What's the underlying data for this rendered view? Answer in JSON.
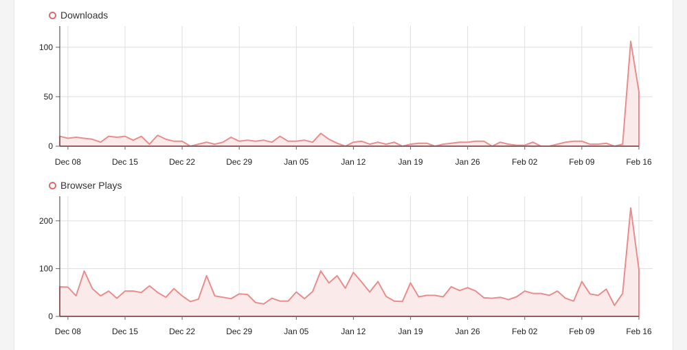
{
  "chart_data": [
    {
      "type": "area",
      "series_name": "Downloads",
      "x_ticks": [
        "Dec 08",
        "Dec 15",
        "Dec 22",
        "Dec 29",
        "Jan 05",
        "Jan 12",
        "Jan 19",
        "Jan 26",
        "Feb 02",
        "Feb 09",
        "Feb 16"
      ],
      "y_ticks": [
        "0",
        "50",
        "100"
      ],
      "ylim": [
        0,
        120
      ],
      "grid": true,
      "color": "#e88c8c",
      "fill": "#fbeaea",
      "x_start_day": 0,
      "values": [
        10,
        8,
        9,
        8,
        7,
        4,
        10,
        9,
        10,
        6,
        10,
        2,
        11,
        7,
        5,
        5,
        0,
        2,
        4,
        2,
        4,
        9,
        5,
        6,
        5,
        6,
        4,
        10,
        5,
        5,
        6,
        4,
        13,
        7,
        3,
        0,
        4,
        5,
        2,
        4,
        2,
        4,
        0,
        2,
        3,
        3,
        0,
        2,
        3,
        4,
        4,
        5,
        5,
        0,
        4,
        2,
        1,
        1,
        4,
        0,
        0,
        2,
        4,
        5,
        5,
        2,
        2,
        3,
        0,
        2,
        106,
        55
      ]
    },
    {
      "type": "area",
      "series_name": "Browser Plays",
      "x_ticks": [
        "Dec 08",
        "Dec 15",
        "Dec 22",
        "Dec 29",
        "Jan 05",
        "Jan 12",
        "Jan 19",
        "Jan 26",
        "Feb 02",
        "Feb 09",
        "Feb 16"
      ],
      "y_ticks": [
        "0",
        "100",
        "200"
      ],
      "ylim": [
        0,
        250
      ],
      "grid": true,
      "color": "#e88c8c",
      "fill": "#fbeaea",
      "x_start_day": 0,
      "values": [
        62,
        61,
        43,
        95,
        58,
        43,
        53,
        38,
        53,
        53,
        50,
        64,
        50,
        40,
        58,
        43,
        31,
        36,
        85,
        43,
        40,
        37,
        47,
        46,
        29,
        26,
        38,
        32,
        32,
        51,
        37,
        52,
        95,
        70,
        85,
        59,
        92,
        72,
        51,
        73,
        42,
        32,
        31,
        70,
        41,
        44,
        44,
        41,
        62,
        54,
        60,
        53,
        39,
        38,
        40,
        35,
        41,
        53,
        48,
        48,
        44,
        53,
        38,
        32,
        73,
        47,
        44,
        57,
        23,
        48,
        227,
        98
      ]
    }
  ]
}
